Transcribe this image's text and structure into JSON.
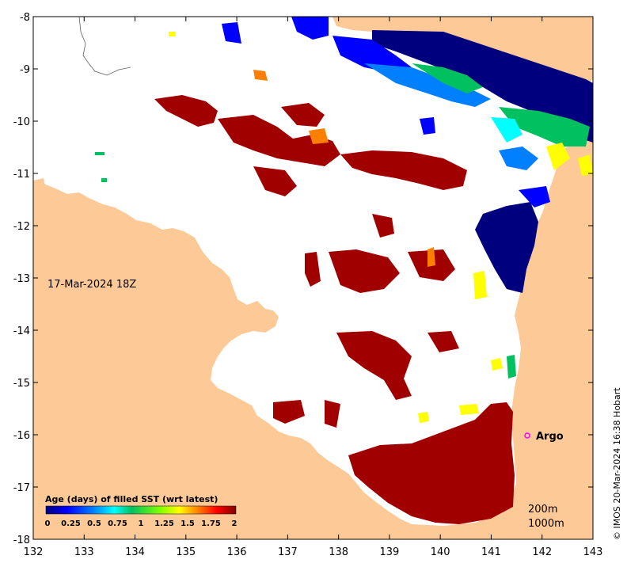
{
  "map": {
    "date_label": "17-Mar-2024 18Z",
    "x_ticks": [
      "132",
      "133",
      "134",
      "135",
      "136",
      "137",
      "138",
      "139",
      "140",
      "141",
      "142",
      "143"
    ],
    "y_ticks": [
      "-8",
      "-9",
      "-10",
      "-11",
      "-12",
      "-13",
      "-14",
      "-15",
      "-16",
      "-17",
      "-18"
    ],
    "argo_label": "Argo",
    "depth_labels": [
      "200m",
      "1000m"
    ],
    "credit": "© IMOS 20-Mar-2024 16:38 Hobart",
    "colors": {
      "land": "#fdca97",
      "water_background": "#ffffff",
      "old_data": "#a10000",
      "argo_marker": "#ff00ff"
    }
  },
  "legend": {
    "title": "Age (days) of filled SST (wrt latest)",
    "ticks": [
      "0",
      "0.25",
      "0.5",
      "0.75",
      "1",
      "1.25",
      "1.5",
      "1.75",
      "2"
    ],
    "colors": [
      "#00007f",
      "#0000ff",
      "#007fff",
      "#00ffff",
      "#00c060",
      "#7fff00",
      "#ffff00",
      "#ff7f00",
      "#ff0000",
      "#7f0000"
    ]
  }
}
